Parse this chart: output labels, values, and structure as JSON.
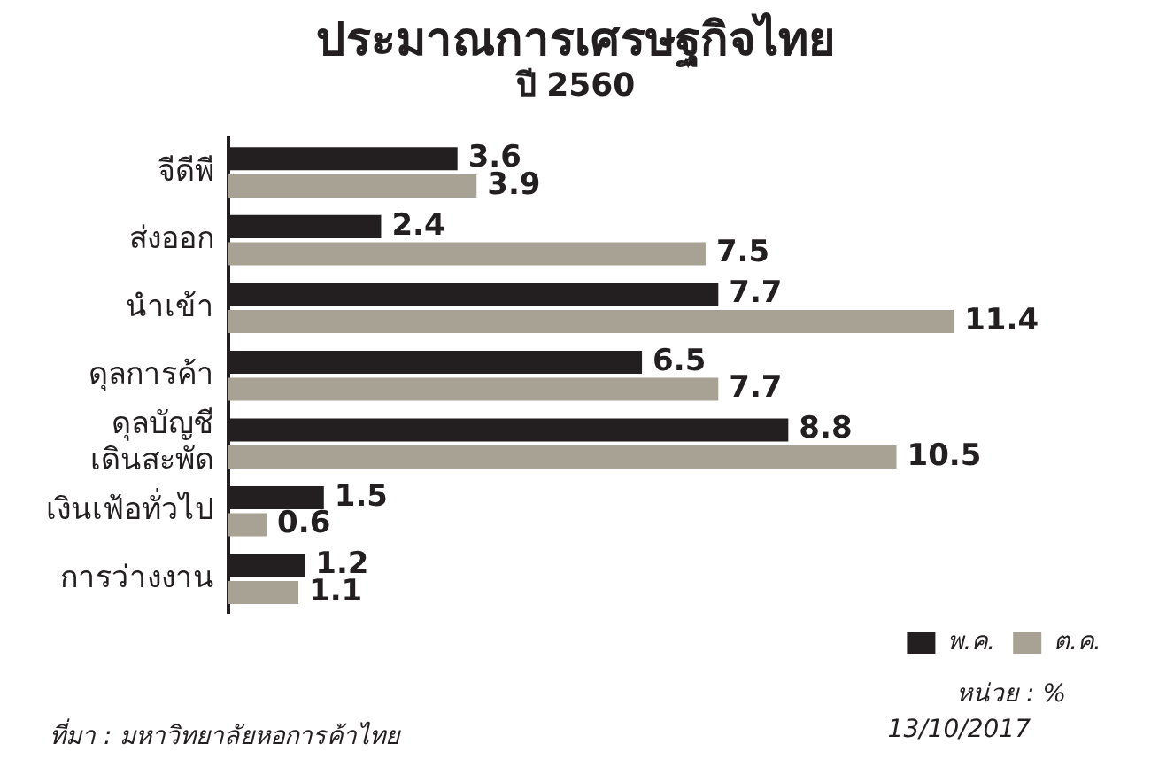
{
  "chart_data": {
    "type": "bar",
    "orientation": "horizontal",
    "title": "ประมาณการเศรษฐกิจไทย",
    "subtitle": "ปี 2560",
    "categories": [
      "จีดีพี",
      "ส่งออก",
      "นำเข้า",
      "ดุลการค้า",
      "ดุลบัญชี\nเดินสะพัด",
      "เงินเฟ้อทั่วไป",
      "การว่างงาน"
    ],
    "series": [
      {
        "name": "พ.ค.",
        "color": "#231f20",
        "values": [
          3.6,
          2.4,
          7.7,
          6.5,
          8.8,
          1.5,
          1.2
        ]
      },
      {
        "name": "ต.ค.",
        "color": "#a8a295",
        "values": [
          3.9,
          7.5,
          11.4,
          7.7,
          10.5,
          0.6,
          1.1
        ]
      }
    ],
    "tick_labels": "y",
    "grid": false,
    "legend": "bottom right",
    "data_labels": true,
    "annotations": [
      "หน่วย : %",
      "ที่มา : มหาวิทยาลัยหอการค้าไทย",
      "13/10/2017"
    ]
  }
}
